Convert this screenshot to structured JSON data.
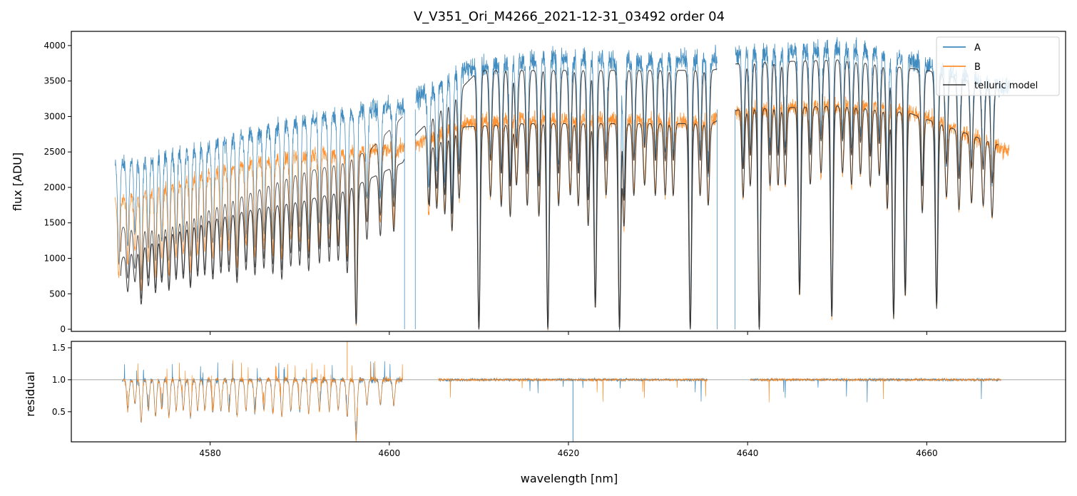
{
  "chart_data": {
    "type": "line",
    "title": "V_V351_Ori_M4266_2021-12-31_03492  order 04",
    "xlabel": "wavelength [nm]",
    "colors": {
      "A": "#1f77b4",
      "B": "#ff7f0e",
      "telluric": "#333333",
      "reference_line": "#888888"
    },
    "panels": [
      {
        "id": "flux",
        "ylabel": "flux [ADU]",
        "xlim": [
          4564.5,
          4675.5
        ],
        "ylim": [
          -30,
          4200
        ],
        "yticks": [
          0,
          500,
          1000,
          1500,
          2000,
          2500,
          3000,
          3500,
          4000
        ],
        "ytick_labels": [
          "0",
          "500",
          "1000",
          "1500",
          "2000",
          "2500",
          "3000",
          "3500",
          "4000"
        ],
        "legend": {
          "position": "top-right",
          "entries": [
            {
              "label": "A",
              "color": "#1f77b4"
            },
            {
              "label": "B",
              "color": "#ff7f0e"
            },
            {
              "label": "telluric model",
              "color": "#333333"
            }
          ]
        },
        "gaps": [
          [
            4601.7,
            4602.9
          ],
          [
            4636.6,
            4638.6
          ]
        ],
        "series": [
          {
            "name": "A",
            "x_range": [
              4569.4,
              4669.2
            ],
            "continuum": [
              [
                4569.4,
                2300
              ],
              [
                4575,
                2450
              ],
              [
                4580,
                2600
              ],
              [
                4585,
                2750
              ],
              [
                4590,
                2900
              ],
              [
                4595,
                3050
              ],
              [
                4601.5,
                3150
              ],
              [
                4603,
                3250
              ],
              [
                4608,
                3650
              ],
              [
                4615,
                3800
              ],
              [
                4625,
                3800
              ],
              [
                4635,
                3780
              ],
              [
                4640,
                3900
              ],
              [
                4650,
                3950
              ],
              [
                4655,
                3900
              ],
              [
                4660,
                3700
              ],
              [
                4669.2,
                3400
              ]
            ],
            "noise": 130
          },
          {
            "name": "B",
            "x_range": [
              4569.4,
              4669.2
            ],
            "continuum": [
              [
                4569.4,
                1800
              ],
              [
                4575,
                2000
              ],
              [
                4580,
                2200
              ],
              [
                4585,
                2350
              ],
              [
                4590,
                2450
              ],
              [
                4595,
                2500
              ],
              [
                4601.5,
                2550
              ],
              [
                4603,
                2600
              ],
              [
                4608,
                2900
              ],
              [
                4615,
                2980
              ],
              [
                4625,
                2950
              ],
              [
                4635,
                2920
              ],
              [
                4640,
                3100
              ],
              [
                4650,
                3150
              ],
              [
                4655,
                3150
              ],
              [
                4660,
                3000
              ],
              [
                4669.2,
                2500
              ]
            ],
            "noise": 110
          },
          {
            "name": "telluric model",
            "x_range": [
              4570.0,
              4668.0
            ],
            "continuum": [
              [
                4570.0,
                1000
              ],
              [
                4575,
                1350
              ],
              [
                4580,
                1550
              ],
              [
                4585,
                1700
              ],
              [
                4590,
                1800
              ],
              [
                4595,
                1950
              ],
              [
                4601.5,
                2350
              ],
              [
                4603,
                2750
              ],
              [
                4610,
                3650
              ],
              [
                4625,
                3650
              ],
              [
                4636,
                3650
              ],
              [
                4639,
                3750
              ],
              [
                4650,
                3800
              ],
              [
                4660,
                3650
              ],
              [
                4668,
                3400
              ]
            ],
            "noise": 0
          },
          {
            "name": "telluric model (B)",
            "x_range": [
              4604.5,
              4668.0
            ],
            "continuum": [
              [
                4604.5,
                2550
              ],
              [
                4608,
                2850
              ],
              [
                4615,
                2900
              ],
              [
                4625,
                2900
              ],
              [
                4636,
                2900
              ],
              [
                4639,
                3100
              ],
              [
                4650,
                3150
              ],
              [
                4658,
                3050
              ],
              [
                4668,
                2600
              ]
            ],
            "noise": 0
          },
          {
            "name": "smooth trend",
            "x_range": [
              4570.0,
              4601.5
            ],
            "continuum": [
              [
                4570.0,
                1450
              ],
              [
                4572,
                1420
              ],
              [
                4575,
                1450
              ],
              [
                4580,
                1700
              ],
              [
                4585,
                1950
              ],
              [
                4590,
                2200
              ],
              [
                4595,
                2350
              ],
              [
                4598,
                2550
              ],
              [
                4601.5,
                3000
              ]
            ],
            "noise": 0
          }
        ],
        "absorption_lines": [
          [
            4569.8,
            0.6
          ],
          [
            4570.8,
            0.5
          ],
          [
            4571.6,
            0.4
          ],
          [
            4572.3,
            0.7
          ],
          [
            4573.1,
            0.5
          ],
          [
            4573.9,
            0.6
          ],
          [
            4574.6,
            0.5
          ],
          [
            4575.4,
            0.6
          ],
          [
            4576.2,
            0.5
          ],
          [
            4577.0,
            0.5
          ],
          [
            4577.8,
            0.6
          ],
          [
            4578.6,
            0.5
          ],
          [
            4579.4,
            0.5
          ],
          [
            4580.3,
            0.55
          ],
          [
            4581.2,
            0.5
          ],
          [
            4582.1,
            0.5
          ],
          [
            4583.0,
            0.6
          ],
          [
            4584.0,
            0.5
          ],
          [
            4585.0,
            0.55
          ],
          [
            4586.0,
            0.5
          ],
          [
            4587.0,
            0.55
          ],
          [
            4588.0,
            0.6
          ],
          [
            4589.0,
            0.5
          ],
          [
            4590.0,
            0.5
          ],
          [
            4591.0,
            0.55
          ],
          [
            4592.2,
            0.5
          ],
          [
            4593.3,
            0.5
          ],
          [
            4594.3,
            0.5
          ],
          [
            4595.3,
            0.6
          ],
          [
            4596.3,
            0.97
          ],
          [
            4597.5,
            0.4
          ],
          [
            4599.0,
            0.4
          ],
          [
            4600.5,
            0.4
          ],
          [
            4604.4,
            0.4
          ],
          [
            4605.3,
            0.35
          ],
          [
            4606.2,
            0.4
          ],
          [
            4607.0,
            0.5
          ],
          [
            4607.8,
            0.35
          ],
          [
            4610.0,
            1.0
          ],
          [
            4611.3,
            0.35
          ],
          [
            4612.5,
            0.4
          ],
          [
            4613.5,
            0.45
          ],
          [
            4614.2,
            0.3
          ],
          [
            4615.4,
            0.4
          ],
          [
            4616.7,
            0.45
          ],
          [
            4617.7,
            1.0
          ],
          [
            4618.9,
            0.4
          ],
          [
            4620.2,
            0.35
          ],
          [
            4621.1,
            0.4
          ],
          [
            4622.2,
            0.5
          ],
          [
            4623.0,
            0.9
          ],
          [
            4624.2,
            0.35
          ],
          [
            4625.7,
            1.0
          ],
          [
            4626.2,
            0.5
          ],
          [
            4627.3,
            0.35
          ],
          [
            4628.5,
            0.3
          ],
          [
            4629.7,
            0.35
          ],
          [
            4630.8,
            0.35
          ],
          [
            4631.7,
            0.35
          ],
          [
            4633.6,
            1.0
          ],
          [
            4634.7,
            0.35
          ],
          [
            4635.6,
            0.4
          ],
          [
            4639.5,
            0.4
          ],
          [
            4640.3,
            0.35
          ],
          [
            4641.3,
            1.0
          ],
          [
            4642.5,
            0.35
          ],
          [
            4643.4,
            0.35
          ],
          [
            4644.2,
            0.35
          ],
          [
            4645.8,
            0.85
          ],
          [
            4647.0,
            0.35
          ],
          [
            4648.2,
            0.3
          ],
          [
            4649.4,
            0.95
          ],
          [
            4650.6,
            0.3
          ],
          [
            4651.6,
            0.35
          ],
          [
            4652.6,
            0.3
          ],
          [
            4653.7,
            0.35
          ],
          [
            4654.7,
            0.3
          ],
          [
            4655.6,
            0.45
          ],
          [
            4656.3,
            0.95
          ],
          [
            4657.6,
            0.85
          ],
          [
            4659.5,
            0.45
          ],
          [
            4661.1,
            0.9
          ],
          [
            4662.2,
            0.35
          ],
          [
            4663.6,
            0.4
          ],
          [
            4665.0,
            0.35
          ],
          [
            4666.3,
            0.35
          ],
          [
            4667.3,
            0.4
          ]
        ]
      },
      {
        "id": "residual",
        "ylabel": "residual",
        "xlim": [
          4564.5,
          4675.5
        ],
        "ylim": [
          0.03,
          1.6
        ],
        "yticks": [
          0.5,
          1.0,
          1.5
        ],
        "ytick_labels": [
          "0.5",
          "1.0",
          "1.5"
        ],
        "xticks": [
          4580,
          4600,
          4620,
          4640,
          4660
        ],
        "xtick_labels": [
          "4580",
          "4600",
          "4620",
          "4640",
          "4660"
        ],
        "reference_line": 1.0,
        "segments": [
          [
            4570.2,
            4601.5
          ],
          [
            4605.5,
            4635.5
          ],
          [
            4640.3,
            4668.3
          ]
        ],
        "spikes": [
          {
            "series": "A",
            "x": 4620.5,
            "y": 0.03
          },
          {
            "series": "B",
            "x": 4595.3,
            "y": 1.6
          }
        ]
      }
    ]
  }
}
